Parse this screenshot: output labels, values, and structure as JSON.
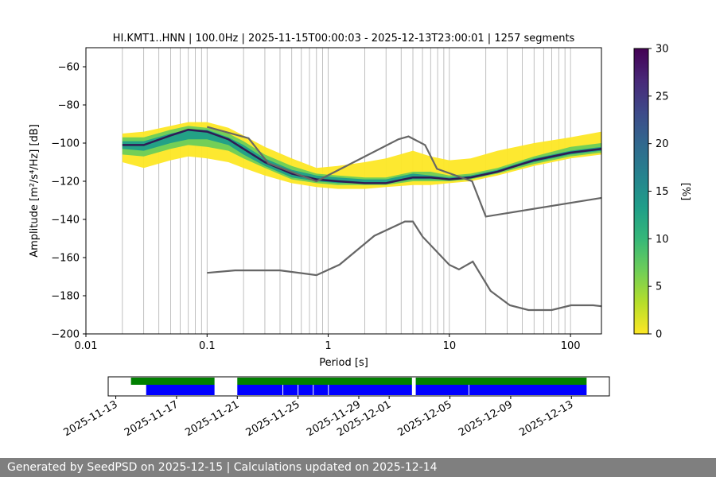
{
  "chart_data": [
    {
      "type": "heatmap",
      "title": "HI.KMT1..HNN | 100.0Hz | 2025-11-15T00:00:03 - 2025-12-13T23:00:01 | 1257 segments",
      "xlabel": "Period [s]",
      "ylabel": "Amplitude [m²/s⁴/Hz] [dB]",
      "x_scale": "log",
      "xlim": [
        0.01,
        180
      ],
      "ylim": [
        -200,
        -50
      ],
      "x_ticks": [
        0.01,
        0.1,
        1,
        10,
        100
      ],
      "x_tick_labels": [
        "0.01",
        "0.1",
        "1",
        "10",
        "100"
      ],
      "y_ticks": [
        -200,
        -180,
        -160,
        -140,
        -120,
        -100,
        -80,
        -60
      ],
      "y_tick_labels": [
        "−200",
        "−180",
        "−160",
        "−140",
        "−120",
        "−100",
        "−80",
        "−60"
      ],
      "grid": "vertical",
      "colormap": "viridis_r",
      "colorbar": {
        "label": "[%]",
        "range": [
          0,
          30
        ],
        "ticks": [
          0,
          5,
          10,
          15,
          20,
          25,
          30
        ],
        "tick_labels": [
          "0",
          "5",
          "10",
          "15",
          "20",
          "25",
          "30"
        ]
      },
      "mode_curve": {
        "x": [
          0.02,
          0.03,
          0.05,
          0.07,
          0.1,
          0.15,
          0.2,
          0.3,
          0.5,
          0.8,
          1.2,
          2,
          3,
          5,
          7,
          10,
          15,
          25,
          50,
          100,
          180
        ],
        "y": [
          -101,
          -101,
          -96,
          -93,
          -94,
          -98,
          -103,
          -110,
          -116,
          -119,
          -120,
          -121,
          -121,
          -118,
          -118,
          -119,
          -118,
          -115,
          -109,
          -105,
          -103
        ]
      },
      "nhnm": {
        "name": "NHNM",
        "x": [
          0.1,
          0.22,
          0.32,
          0.8,
          3.8,
          4.6,
          6.3,
          7.9,
          15.4,
          20,
          180
        ],
        "y": [
          -91.5,
          -97.4,
          -110.5,
          -120,
          -98,
          -96.5,
          -101,
          -113.5,
          -120,
          -138.5,
          -128.7
        ]
      },
      "nlnm": {
        "name": "NLNM",
        "x": [
          0.1,
          0.17,
          0.4,
          0.8,
          1.24,
          2.4,
          4.3,
          5,
          6,
          10,
          12,
          15.6,
          21.9,
          31.6,
          45,
          70,
          101,
          154,
          180
        ],
        "y": [
          -168,
          -166.7,
          -166.7,
          -169.2,
          -163.7,
          -148.6,
          -141.1,
          -141.1,
          -149,
          -163.8,
          -166.2,
          -162.1,
          -177.5,
          -185,
          -187.5,
          -187.5,
          -185,
          -185,
          -185.5
        ]
      },
      "density_bands": [
        {
          "name": "yellow",
          "color": "#fde725",
          "x": [
            0.02,
            0.03,
            0.05,
            0.07,
            0.1,
            0.15,
            0.2,
            0.3,
            0.5,
            0.8,
            1.2,
            2,
            3,
            5,
            7,
            10,
            15,
            25,
            50,
            100,
            180
          ],
          "lower": [
            -110,
            -113,
            -109,
            -107,
            -108,
            -110,
            -113,
            -117,
            -121,
            -123,
            -124,
            -124,
            -123,
            -122,
            -122,
            -121,
            -120,
            -117,
            -112,
            -108,
            -106
          ],
          "upper": [
            -95,
            -94,
            -91,
            -89,
            -89,
            -92,
            -96,
            -102,
            -108,
            -113,
            -112,
            -110,
            -108,
            -104,
            -107,
            -109,
            -108,
            -104,
            -100,
            -97,
            -94
          ]
        },
        {
          "name": "green",
          "color": "#6ccd5a",
          "x": [
            0.02,
            0.03,
            0.05,
            0.07,
            0.1,
            0.15,
            0.2,
            0.3,
            0.5,
            0.8,
            1.2,
            2,
            3,
            5,
            7,
            10,
            15,
            25,
            50,
            100,
            180
          ],
          "lower": [
            -106,
            -107,
            -103,
            -101,
            -102,
            -104,
            -108,
            -113,
            -119,
            -121,
            -122,
            -122,
            -122,
            -120,
            -120,
            -120,
            -119,
            -116,
            -111,
            -107,
            -105
          ],
          "upper": [
            -97,
            -97,
            -93,
            -91,
            -92,
            -95,
            -99,
            -106,
            -112,
            -116,
            -117,
            -118,
            -118,
            -115,
            -115,
            -117,
            -116,
            -113,
            -107,
            -102,
            -100
          ]
        },
        {
          "name": "teal",
          "color": "#1f9e89",
          "x": [
            0.02,
            0.03,
            0.05,
            0.07,
            0.1,
            0.15,
            0.2,
            0.3,
            0.5,
            0.8,
            1.2,
            2,
            3,
            5,
            7,
            10,
            15,
            25,
            50,
            100,
            180
          ],
          "lower": [
            -103,
            -104,
            -100,
            -98,
            -98,
            -101,
            -106,
            -112,
            -118,
            -120,
            -121,
            -121,
            -121,
            -119,
            -119,
            -119,
            -118,
            -115,
            -110,
            -106,
            -104
          ],
          "upper": [
            -99,
            -99,
            -95,
            -93,
            -93,
            -97,
            -101,
            -108,
            -114,
            -117,
            -118,
            -119,
            -119,
            -116,
            -117,
            -118,
            -117,
            -114,
            -108,
            -104,
            -102
          ]
        }
      ]
    },
    {
      "type": "timeline",
      "date_tick_labels": [
        "2025-11-13",
        "2025-11-17",
        "2025-11-21",
        "2025-11-25",
        "2025-11-29",
        "2025-12-01",
        "2025-12-05",
        "2025-12-09",
        "2025-12-13"
      ],
      "date_ticks": [
        "2025-11-13",
        "2025-11-17",
        "2025-11-21",
        "2025-11-25",
        "2025-11-29",
        "2025-12-01",
        "2025-12-05",
        "2025-12-09",
        "2025-12-13"
      ],
      "xlim": [
        "2025-11-12 12:00",
        "2025-12-15 12:00"
      ],
      "data_available_color": "#008000",
      "psd_used_color": "#0000ff",
      "data_available": [
        [
          "2025-11-14 00:00",
          "2025-11-19 12:00"
        ],
        [
          "2025-11-21 00:00",
          "2025-12-02 12:00"
        ],
        [
          "2025-12-02 18:00",
          "2025-12-14 00:00"
        ]
      ],
      "psd_used": [
        [
          "2025-11-15 00:00",
          "2025-11-19 12:00"
        ],
        [
          "2025-11-21 00:00",
          "2025-12-02 12:00"
        ],
        [
          "2025-12-02 18:00",
          "2025-12-14 00:00"
        ]
      ],
      "psd_gaps": [
        "2025-11-24 00:00",
        "2025-11-25 00:00",
        "2025-11-26 00:00",
        "2025-11-27 00:00",
        "2025-12-06 06:00"
      ]
    }
  ],
  "footer": {
    "text": "Generated by SeedPSD on 2025-12-15 | Calculations updated on 2025-12-14"
  }
}
